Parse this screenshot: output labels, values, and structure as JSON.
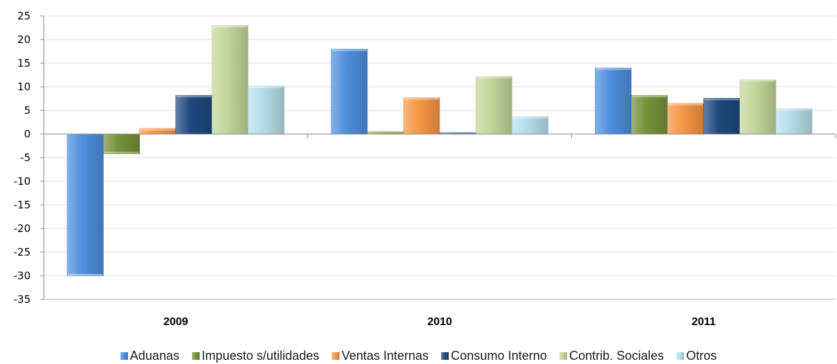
{
  "chart_data": {
    "type": "bar",
    "title": "",
    "xlabel": "",
    "ylabel": "",
    "ylim": [
      -35,
      25
    ],
    "yticks": [
      "25",
      "20",
      "15",
      "10",
      "5",
      "0",
      "-5",
      "-10",
      "-15",
      "-20",
      "-25",
      "-30",
      "-35"
    ],
    "categories": [
      "2009",
      "2010",
      "2011"
    ],
    "grid": true,
    "legend_position": "bottom",
    "series": [
      {
        "name": "Aduanas",
        "color": "#4f8fdc",
        "values": [
          -30,
          18,
          14
        ]
      },
      {
        "name": "Impuesto s/utilidades",
        "color": "#76923c",
        "values": [
          -4.2,
          0.5,
          8.2
        ]
      },
      {
        "name": "Ventas Internas",
        "color": "#f79646",
        "values": [
          1.2,
          7.7,
          6.5
        ]
      },
      {
        "name": "Consumo Interno",
        "color": "#1f497d",
        "values": [
          8.2,
          0.3,
          7.6
        ]
      },
      {
        "name": "Contrib. Sociales",
        "color": "#c3d69b",
        "values": [
          23,
          12.2,
          11.5
        ]
      },
      {
        "name": "Otros",
        "color": "#b7dee8",
        "values": [
          10.2,
          3.7,
          5.4
        ]
      }
    ]
  }
}
